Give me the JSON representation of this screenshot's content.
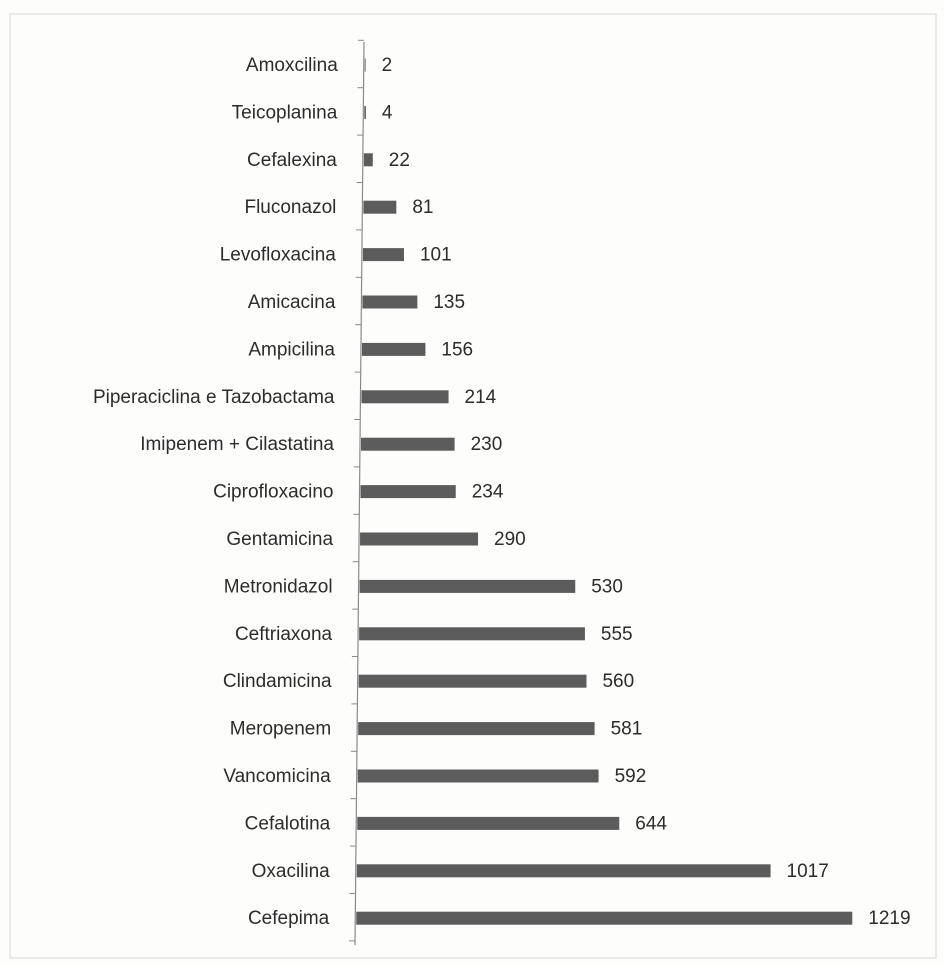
{
  "chart_data": {
    "type": "bar",
    "orientation": "horizontal",
    "title": "",
    "xlabel": "",
    "ylabel": "",
    "categories": [
      "Amoxcilina",
      "Teicoplanina",
      "Cefalexina",
      "Fluconazol",
      "Levofloxacina",
      "Amicacina",
      "Ampicilina",
      "Piperaciclina e Tazobactama",
      "Imipenem + Cilastatina",
      "Ciprofloxacino",
      "Gentamicina",
      "Metronidazol",
      "Ceftriaxona",
      "Clindamicina",
      "Meropenem",
      "Vancomicina",
      "Cefalotina",
      "Oxacilina",
      "Cefepima"
    ],
    "values": [
      2,
      4,
      22,
      81,
      101,
      135,
      156,
      214,
      230,
      234,
      290,
      530,
      555,
      560,
      581,
      592,
      644,
      1017,
      1219
    ],
    "xlim": [
      0,
      1219
    ],
    "data_labels": true,
    "grid": false,
    "legend": "none",
    "bar_color": "#5c5c5c"
  }
}
